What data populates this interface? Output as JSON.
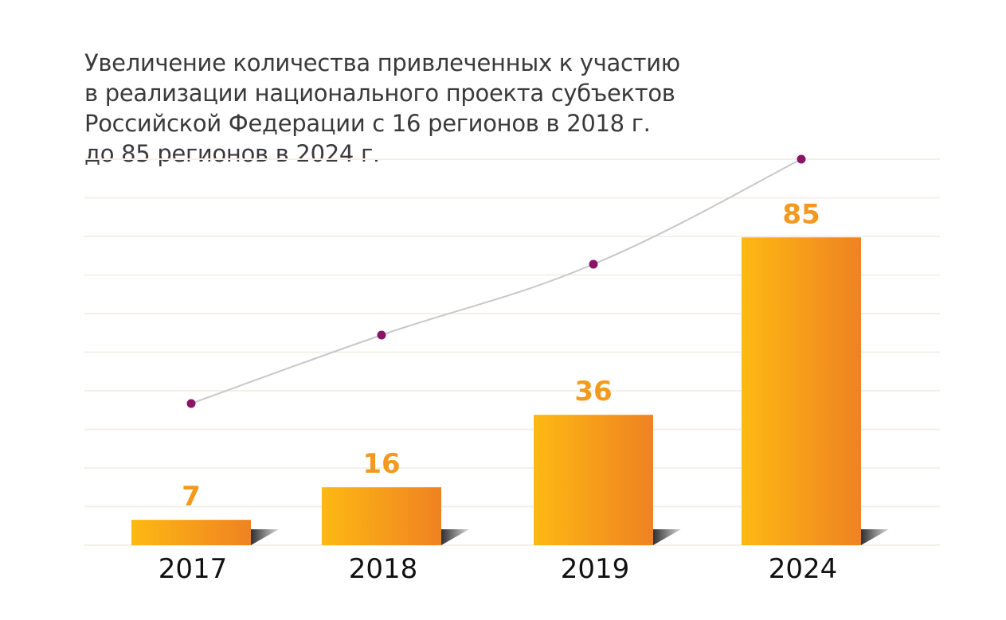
{
  "chart_data": {
    "type": "bar",
    "title_lines": [
      "Увеличение количества привлеченных к участию",
      "в реализации национального проекта субъектов",
      "Российской Федерации с 16 регионов в 2018 г.",
      "до 85 регионов в 2024 г."
    ],
    "categories": [
      "2017",
      "2018",
      "2019",
      "2024"
    ],
    "values": [
      7,
      16,
      36,
      85
    ],
    "value_labels": [
      "7",
      "16",
      "36",
      "85"
    ],
    "xlabel": "",
    "ylabel": "",
    "grid": true,
    "legend": "none",
    "overlay": "trend line with point markers above bars",
    "colors": {
      "bar_start": "#fdb913",
      "bar_end": "#ef8222",
      "value_label": "#f39a1e",
      "trend_line": "#c8c8c8",
      "trend_point": "#8c1466",
      "grid": "#f3f0e8",
      "category_label": "#111111"
    }
  }
}
